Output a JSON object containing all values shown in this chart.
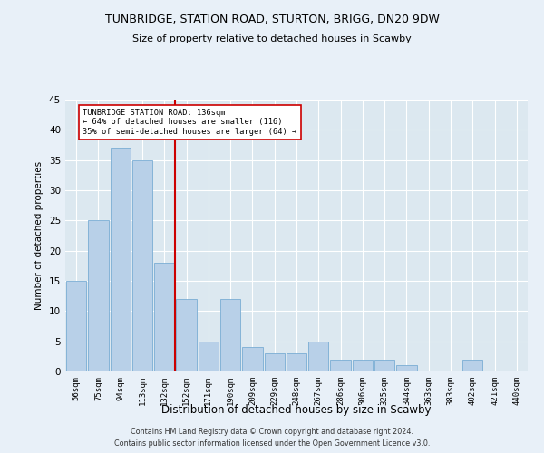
{
  "title_line1": "TUNBRIDGE, STATION ROAD, STURTON, BRIGG, DN20 9DW",
  "title_line2": "Size of property relative to detached houses in Scawby",
  "xlabel": "Distribution of detached houses by size in Scawby",
  "ylabel": "Number of detached properties",
  "categories": [
    "56sqm",
    "75sqm",
    "94sqm",
    "113sqm",
    "132sqm",
    "152sqm",
    "171sqm",
    "190sqm",
    "209sqm",
    "229sqm",
    "248sqm",
    "267sqm",
    "286sqm",
    "306sqm",
    "325sqm",
    "344sqm",
    "363sqm",
    "383sqm",
    "402sqm",
    "421sqm",
    "440sqm"
  ],
  "values": [
    15,
    25,
    37,
    35,
    18,
    12,
    5,
    12,
    4,
    3,
    3,
    5,
    2,
    2,
    2,
    1,
    0,
    0,
    2,
    0,
    0
  ],
  "bar_color": "#b8d0e8",
  "bar_edgecolor": "#7aadd4",
  "vline_x": 4.5,
  "vline_color": "#cc0000",
  "annotation_text": "TUNBRIDGE STATION ROAD: 136sqm\n← 64% of detached houses are smaller (116)\n35% of semi-detached houses are larger (64) →",
  "annotation_box_color": "#ffffff",
  "annotation_box_edgecolor": "#cc0000",
  "ylim": [
    0,
    45
  ],
  "yticks": [
    0,
    5,
    10,
    15,
    20,
    25,
    30,
    35,
    40,
    45
  ],
  "background_color": "#dce8f0",
  "fig_background_color": "#e8f0f8",
  "grid_color": "#ffffff",
  "footer_line1": "Contains HM Land Registry data © Crown copyright and database right 2024.",
  "footer_line2": "Contains public sector information licensed under the Open Government Licence v3.0."
}
